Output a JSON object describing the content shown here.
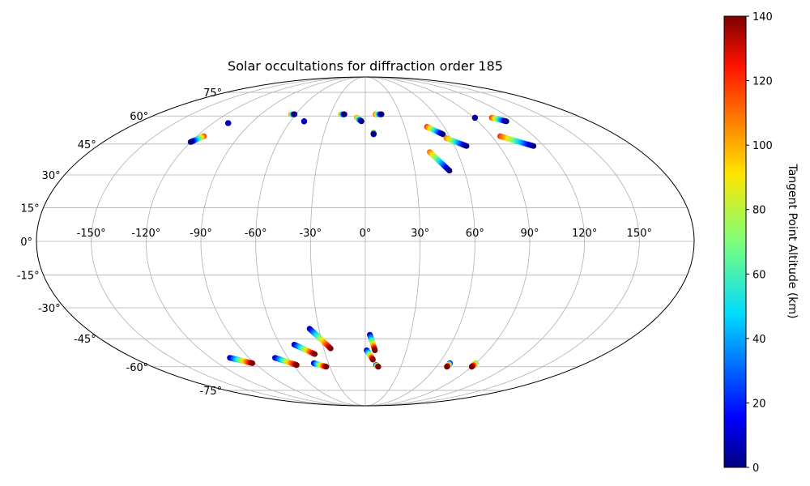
{
  "chart_data": {
    "type": "scatter",
    "projection": "mollweide",
    "title": "Solar occultations for diffraction order 185",
    "longitude_ticks": [
      -150,
      -120,
      -90,
      -60,
      -30,
      0,
      30,
      60,
      90,
      120,
      150
    ],
    "longitude_tick_labels": [
      "-150°",
      "-120°",
      "-90°",
      "-60°",
      "-30°",
      "0°",
      "30°",
      "60°",
      "90°",
      "120°",
      "150°"
    ],
    "latitude_ticks": [
      -75,
      -60,
      -45,
      -30,
      -15,
      0,
      15,
      30,
      45,
      60,
      75
    ],
    "latitude_tick_labels": [
      "-75°",
      "-60°",
      "-45°",
      "-30°",
      "-15°",
      "0°",
      "15°",
      "30°",
      "45°",
      "60°",
      "75°"
    ],
    "grid": true,
    "colorbar": {
      "label": "Tangent Point Altitude (km)",
      "range": [
        0,
        140
      ],
      "ticks": [
        0,
        20,
        40,
        60,
        80,
        100,
        120,
        140
      ],
      "tick_labels": [
        "0",
        "20",
        "40",
        "60",
        "80",
        "100",
        "120",
        "140"
      ],
      "colormap": "jet",
      "position": "right"
    },
    "tracks": [
      {
        "lon_start": -115,
        "lat_start": 49,
        "lon_end": -120,
        "lat_end": 46,
        "alt_start": 120,
        "alt_end": 0
      },
      {
        "lon_start": -108,
        "lat_start": 56,
        "lon_end": -108,
        "lat_end": 56,
        "alt_start": 5,
        "alt_end": 5
      },
      {
        "lon_start": -64,
        "lat_start": 61,
        "lon_end": -61,
        "lat_end": 61,
        "alt_start": 110,
        "alt_end": 0
      },
      {
        "lon_start": -49,
        "lat_start": 57,
        "lon_end": -49,
        "lat_end": 57,
        "alt_start": 5,
        "alt_end": 5
      },
      {
        "lon_start": -21,
        "lat_start": 61,
        "lon_end": -18,
        "lat_end": 61,
        "alt_start": 110,
        "alt_end": 0
      },
      {
        "lon_start": -7,
        "lat_start": 59,
        "lon_end": -3,
        "lat_end": 57,
        "alt_start": 110,
        "alt_end": 0
      },
      {
        "lon_start": 9,
        "lat_start": 61,
        "lon_end": 14,
        "lat_end": 61,
        "alt_start": 120,
        "alt_end": 0
      },
      {
        "lon_start": 6,
        "lat_start": 51,
        "lon_end": 6,
        "lat_end": 50,
        "alt_start": 100,
        "alt_end": 0
      },
      {
        "lon_start": 47,
        "lat_start": 54,
        "lon_end": 56,
        "lat_end": 50,
        "alt_start": 120,
        "alt_end": 0
      },
      {
        "lon_start": 57,
        "lat_start": 48,
        "lon_end": 68,
        "lat_end": 44,
        "alt_start": 110,
        "alt_end": 0
      },
      {
        "lon_start": 42,
        "lat_start": 41,
        "lon_end": 51,
        "lat_end": 32,
        "alt_start": 110,
        "alt_end": 0
      },
      {
        "lon_start": 91,
        "lat_start": 59,
        "lon_end": 91,
        "lat_end": 59,
        "alt_start": 5,
        "alt_end": 5
      },
      {
        "lon_start": 105,
        "lat_start": 59,
        "lon_end": 113,
        "lat_end": 57,
        "alt_start": 120,
        "alt_end": 0
      },
      {
        "lon_start": 96,
        "lat_start": 49,
        "lon_end": 113,
        "lat_end": 44,
        "alt_start": 120,
        "alt_end": 0
      },
      {
        "lon_start": -105,
        "lat_start": -55,
        "lon_end": -92,
        "lat_end": -58,
        "alt_start": 5,
        "alt_end": 140
      },
      {
        "lon_start": -70,
        "lat_start": -55,
        "lon_end": -57,
        "lat_end": -59,
        "alt_start": 5,
        "alt_end": 140
      },
      {
        "lon_start": -50,
        "lat_start": -48,
        "lon_end": -38,
        "lat_end": -53,
        "alt_start": 5,
        "alt_end": 140
      },
      {
        "lon_start": -36,
        "lat_start": -40,
        "lon_end": -25,
        "lat_end": -50,
        "alt_start": 5,
        "alt_end": 140
      },
      {
        "lon_start": -42,
        "lat_start": -58,
        "lon_end": -33,
        "lat_end": -60,
        "alt_start": 5,
        "alt_end": 140
      },
      {
        "lon_start": 3,
        "lat_start": -43,
        "lon_end": 7,
        "lat_end": -51,
        "alt_start": 5,
        "alt_end": 140
      },
      {
        "lon_start": 1,
        "lat_start": -51,
        "lon_end": 6,
        "lat_end": -56,
        "alt_start": 5,
        "alt_end": 140
      },
      {
        "lon_start": 9,
        "lat_start": -59,
        "lon_end": 11,
        "lat_end": -60,
        "alt_start": 5,
        "alt_end": 140
      },
      {
        "lon_start": 69,
        "lat_start": -58,
        "lon_end": 69,
        "lat_end": -60,
        "alt_start": 5,
        "alt_end": 140
      },
      {
        "lon_start": 90,
        "lat_start": -58,
        "lon_end": 90,
        "lat_end": -60,
        "alt_start": 60,
        "alt_end": 140
      }
    ]
  }
}
